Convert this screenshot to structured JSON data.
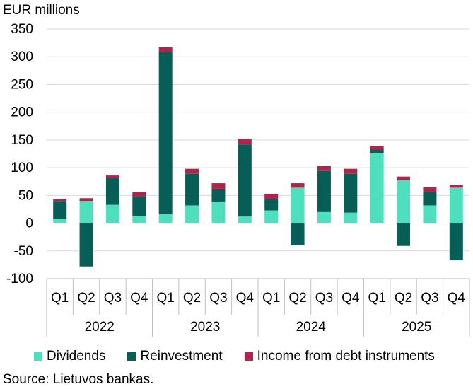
{
  "chart_data": {
    "type": "bar",
    "stacked": true,
    "ylabel": "EUR millions",
    "ylim": [
      -100,
      350
    ],
    "yticks": [
      -100,
      -50,
      0,
      50,
      100,
      150,
      200,
      250,
      300,
      350
    ],
    "categories": [
      "Q1",
      "Q2",
      "Q3",
      "Q4",
      "Q1",
      "Q2",
      "Q3",
      "Q4",
      "Q1",
      "Q2",
      "Q3",
      "Q4",
      "Q1",
      "Q2",
      "Q3",
      "Q4"
    ],
    "years": [
      "2022",
      "2023",
      "2024",
      "2025"
    ],
    "grid": true,
    "legend_position": "bottom",
    "series": [
      {
        "name": "Dividends",
        "color": "#4ee0bd",
        "values": [
          8,
          40,
          33,
          13,
          16,
          32,
          39,
          12,
          23,
          64,
          20,
          19,
          126,
          78,
          32,
          64
        ]
      },
      {
        "name": "Reinvestment",
        "color": "#065e57",
        "values": [
          32,
          -78,
          48,
          36,
          293,
          57,
          23,
          130,
          20,
          -40,
          74,
          70,
          6,
          -41,
          24,
          -67
        ]
      },
      {
        "name": "Income from debt instruments",
        "color": "#b0234b",
        "values": [
          4,
          5,
          5,
          7,
          8,
          9,
          10,
          10,
          10,
          8,
          9,
          9,
          7,
          6,
          9,
          5
        ]
      }
    ]
  },
  "source": "Source: Lietuvos bankas."
}
